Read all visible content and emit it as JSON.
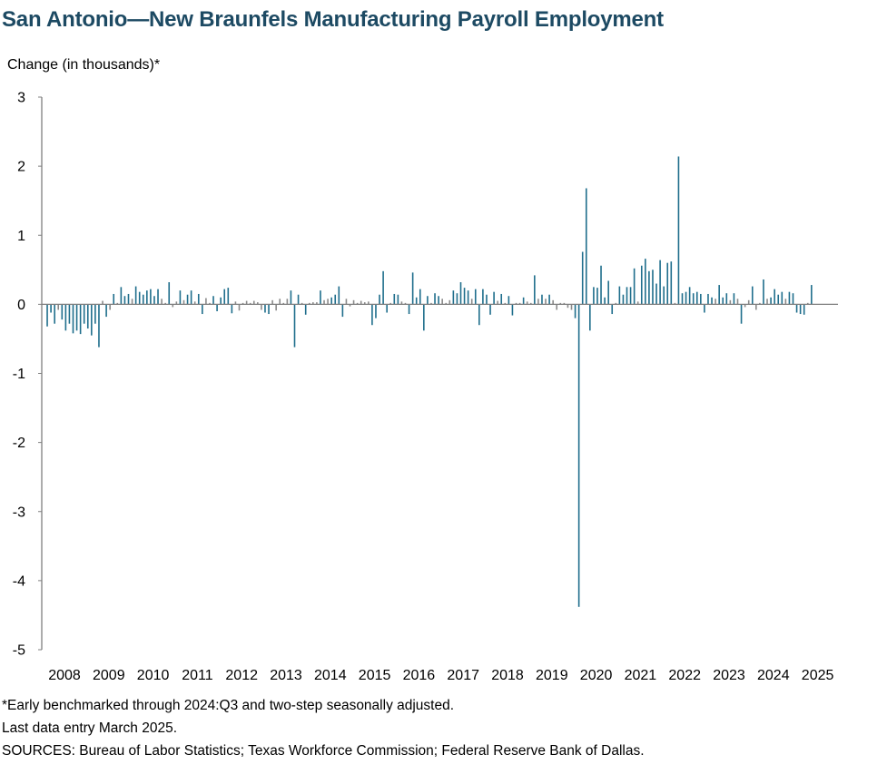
{
  "title": "San Antonio—New Braunfels Manufacturing Payroll Employment",
  "notes": {
    "footnote": "*Early benchmarked through 2024:Q3 and two-step seasonally adjusted.",
    "last_entry": "Last data entry March 2025.",
    "sources": "SOURCES: Bureau of Labor Statistics; Texas Workforce Commission; Federal Reserve Bank of Dallas."
  },
  "chart_data": {
    "type": "bar",
    "title": "San Antonio—New Braunfels Manufacturing Payroll Employment",
    "ylabel": "Change (in thousands)*",
    "xlabel": "",
    "ylim": [
      -5,
      3
    ],
    "yticks": [
      "3",
      "2",
      "1",
      "0",
      "-1",
      "-2",
      "-3",
      "-4",
      "-5"
    ],
    "xticks": [
      "2008",
      "2009",
      "2010",
      "2011",
      "2012",
      "2013",
      "2014",
      "2015",
      "2016",
      "2017",
      "2018",
      "2019",
      "2020",
      "2021",
      "2022",
      "2023",
      "2024",
      "2025"
    ],
    "grid": false,
    "legend": "none",
    "colors": {
      "positive": "#1f6e8c",
      "negative": "#1f6e8c",
      "small": "#8a8a8a",
      "axis": "#7f7f7f",
      "title": "#1d4a63"
    },
    "start": "2008-01",
    "frequency": "monthly",
    "values": [
      -0.32,
      -0.12,
      -0.28,
      -0.08,
      -0.22,
      -0.38,
      -0.28,
      -0.42,
      -0.38,
      -0.43,
      -0.28,
      -0.35,
      -0.45,
      -0.28,
      -0.62,
      0.05,
      -0.18,
      -0.08,
      0.15,
      0.02,
      0.25,
      0.12,
      0.15,
      0.08,
      0.26,
      0.18,
      0.14,
      0.2,
      0.22,
      0.12,
      0.22,
      0.08,
      0.02,
      0.32,
      -0.04,
      0.04,
      0.2,
      0.06,
      0.14,
      0.2,
      0.04,
      0.15,
      -0.14,
      0.09,
      0.02,
      0.12,
      -0.1,
      0.1,
      0.22,
      0.24,
      -0.13,
      0.04,
      -0.09,
      0.02,
      0.05,
      0.02,
      0.05,
      0.03,
      -0.08,
      -0.12,
      -0.14,
      0.06,
      -0.09,
      0.08,
      0.02,
      0.08,
      0.2,
      -0.62,
      0.14,
      0.02,
      -0.15,
      0.02,
      0.03,
      0.03,
      0.2,
      0.06,
      0.08,
      0.1,
      0.14,
      0.26,
      -0.18,
      0.08,
      -0.03,
      0.06,
      0.02,
      0.05,
      0.03,
      0.04,
      -0.3,
      -0.2,
      0.14,
      0.48,
      -0.12,
      0.02,
      0.15,
      0.14,
      0.04,
      0.02,
      -0.14,
      0.46,
      0.1,
      0.22,
      -0.38,
      0.12,
      0.02,
      0.16,
      0.12,
      0.08,
      0.02,
      0.06,
      0.2,
      0.16,
      0.32,
      0.24,
      0.2,
      0.08,
      0.22,
      -0.3,
      0.22,
      0.14,
      -0.15,
      0.18,
      0.05,
      0.15,
      0.02,
      0.12,
      -0.16,
      0.02,
      0.02,
      0.1,
      0.04,
      0.02,
      0.42,
      0.08,
      0.14,
      0.08,
      0.14,
      0.06,
      -0.08,
      0.02,
      0.02,
      -0.05,
      -0.08,
      -0.2,
      -4.38,
      0.76,
      1.68,
      -0.38,
      0.25,
      0.24,
      0.56,
      0.1,
      0.34,
      -0.14,
      0.02,
      0.26,
      0.14,
      0.25,
      0.25,
      0.52,
      0.04,
      0.56,
      0.66,
      0.48,
      0.5,
      0.3,
      0.64,
      0.26,
      0.6,
      0.62,
      0.02,
      2.14,
      0.16,
      0.18,
      0.25,
      0.16,
      0.18,
      0.15,
      -0.12,
      0.15,
      0.1,
      0.08,
      0.28,
      0.1,
      0.16,
      0.06,
      0.16,
      0.08,
      -0.28,
      -0.04,
      0.06,
      0.26,
      -0.08,
      0.02,
      0.36,
      0.08,
      0.1,
      0.22,
      0.14,
      0.18,
      0.08,
      0.18,
      0.16,
      -0.12,
      -0.14,
      -0.15,
      0.02,
      0.28
    ]
  }
}
